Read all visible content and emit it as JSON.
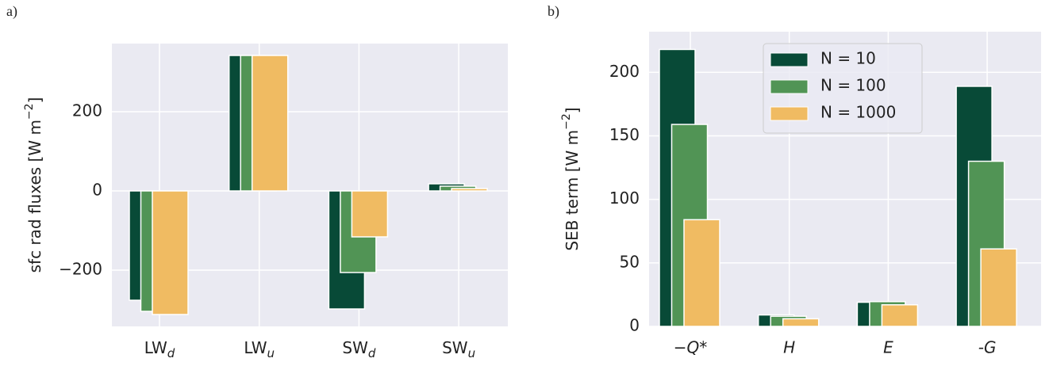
{
  "chart_data": [
    {
      "type": "bar",
      "panel_label": "a)",
      "ylabel": {
        "text": "sfc rad fluxes  [W m",
        "sup": "−2",
        "end": "]"
      },
      "categories": [
        {
          "base": "LW",
          "sub": "d"
        },
        {
          "base": "LW",
          "sub": "u"
        },
        {
          "base": "SW",
          "sub": "d"
        },
        {
          "base": "SW",
          "sub": "u"
        }
      ],
      "series": [
        {
          "color": "#084a37",
          "values": [
            -276,
            342,
            -298,
            18
          ]
        },
        {
          "color": "#519455",
          "values": [
            -304,
            342,
            -206,
            12
          ]
        },
        {
          "color": "#f0bb62",
          "values": [
            -312,
            342,
            -116,
            6
          ]
        }
      ],
      "ylim": [
        -342,
        372
      ],
      "yticks": [
        {
          "value": -200,
          "label": "−200"
        },
        0,
        200
      ],
      "grid": true
    },
    {
      "type": "bar",
      "panel_label": "b)",
      "ylabel": {
        "text": "SEB term  [W m",
        "sup": "−2",
        "end": "]"
      },
      "categories": [
        "−Q*",
        "H",
        "E",
        "-G"
      ],
      "series": [
        {
          "name": "N = 10",
          "color": "#084a37",
          "values": [
            218,
            9,
            19,
            189
          ]
        },
        {
          "name": "N = 100",
          "color": "#519455",
          "values": [
            159,
            8,
            19.5,
            130
          ]
        },
        {
          "name": "N = 1000",
          "color": "#f0bb62",
          "values": [
            84,
            6,
            17,
            61
          ]
        }
      ],
      "ylim": [
        0,
        232
      ],
      "yticks": [
        0,
        50,
        100,
        150,
        200
      ],
      "grid": true,
      "legend": "upper center"
    }
  ]
}
